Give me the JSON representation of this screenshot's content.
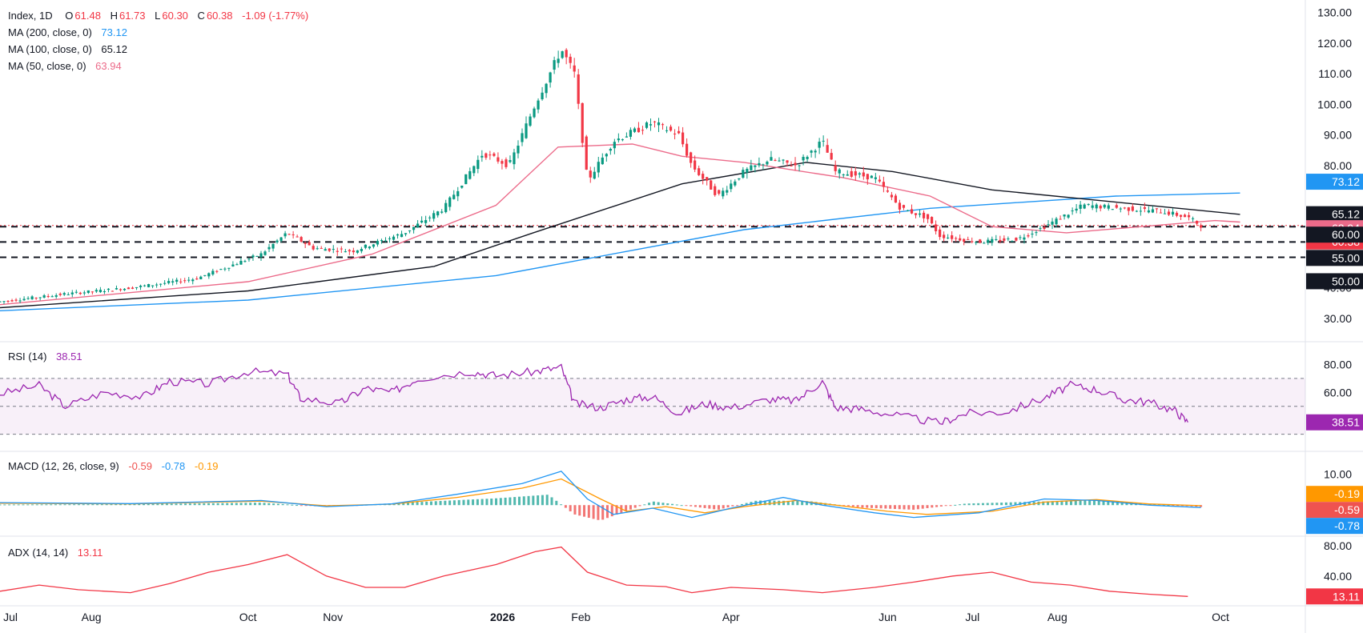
{
  "chart_data": {
    "type": "candlestick",
    "title": "Index, 1D",
    "ohlc": {
      "open_label": "O",
      "open": "61.48",
      "high_label": "H",
      "high": "61.73",
      "low_label": "L",
      "low": "60.30",
      "close_label": "C",
      "close": "60.38",
      "change": "-1.09 (-1.77%)"
    },
    "x_ticks": [
      "Jul",
      "Aug",
      "Oct",
      "Nov",
      "2026",
      "Feb",
      "Apr",
      "Jun",
      "Jul",
      "Aug",
      "Oct"
    ],
    "price_axis": {
      "ticks": [
        "130.00",
        "120.00",
        "110.00",
        "100.00",
        "90.00",
        "80.00",
        "40.00",
        "30.00"
      ],
      "ylim": [
        25,
        132
      ]
    },
    "levels": [
      60.38,
      60.0,
      55.0,
      50.0
    ],
    "level_labels": [
      "60.00",
      "55.00",
      "50.00"
    ],
    "last_price": "60.38",
    "ma": [
      {
        "name": "MA (200, close, 0)",
        "value": "73.12",
        "color": "#2196f3",
        "label": "73.12"
      },
      {
        "name": "MA (100, close, 0)",
        "value": "65.12",
        "color": "#131722",
        "label": "65.12"
      },
      {
        "name": "MA (50, close, 0)",
        "value": "63.94",
        "color": "#ec6b8a",
        "label": "63.94"
      }
    ],
    "ma_series": {
      "ma200": [
        [
          0,
          32.5
        ],
        [
          0.2,
          36
        ],
        [
          0.4,
          44
        ],
        [
          0.6,
          59
        ],
        [
          0.75,
          66
        ],
        [
          0.9,
          70
        ],
        [
          1,
          71
        ]
      ],
      "ma100": [
        [
          0,
          33.5
        ],
        [
          0.2,
          39
        ],
        [
          0.35,
          47
        ],
        [
          0.43,
          58
        ],
        [
          0.55,
          74
        ],
        [
          0.65,
          81
        ],
        [
          0.72,
          78
        ],
        [
          0.8,
          72
        ],
        [
          0.9,
          68
        ],
        [
          1,
          64
        ]
      ],
      "ma50": [
        [
          0,
          34.5
        ],
        [
          0.2,
          42
        ],
        [
          0.3,
          51
        ],
        [
          0.4,
          67
        ],
        [
          0.45,
          86
        ],
        [
          0.51,
          87
        ],
        [
          0.55,
          83
        ],
        [
          0.6,
          81
        ],
        [
          0.68,
          76
        ],
        [
          0.75,
          70
        ],
        [
          0.8,
          60
        ],
        [
          0.86,
          58
        ],
        [
          0.92,
          60
        ],
        [
          0.98,
          62
        ],
        [
          1,
          61.5
        ]
      ]
    },
    "price_path": [
      [
        0,
        35.5
      ],
      [
        0.05,
        38
      ],
      [
        0.1,
        40
      ],
      [
        0.15,
        43
      ],
      [
        0.2,
        51
      ],
      [
        0.22,
        58
      ],
      [
        0.24,
        53
      ],
      [
        0.27,
        52
      ],
      [
        0.31,
        58
      ],
      [
        0.34,
        66
      ],
      [
        0.37,
        84
      ],
      [
        0.39,
        80
      ],
      [
        0.41,
        100
      ],
      [
        0.43,
        118
      ],
      [
        0.44,
        110
      ],
      [
        0.45,
        75
      ],
      [
        0.47,
        88
      ],
      [
        0.5,
        94
      ],
      [
        0.52,
        90
      ],
      [
        0.53,
        80
      ],
      [
        0.55,
        70
      ],
      [
        0.57,
        78
      ],
      [
        0.59,
        82
      ],
      [
        0.61,
        80
      ],
      [
        0.63,
        88
      ],
      [
        0.64,
        78
      ],
      [
        0.67,
        76
      ],
      [
        0.69,
        66
      ],
      [
        0.71,
        63
      ],
      [
        0.72,
        57
      ],
      [
        0.75,
        55
      ],
      [
        0.78,
        56
      ],
      [
        0.8,
        60
      ],
      [
        0.83,
        67
      ],
      [
        0.86,
        66
      ],
      [
        0.89,
        65
      ],
      [
        0.91,
        63
      ],
      [
        0.92,
        60.38
      ]
    ],
    "rsi": {
      "name": "RSI (14)",
      "value": "38.51",
      "color": "#9c27b0",
      "label": "38.51",
      "ticks": [
        "80.00",
        "60.00"
      ],
      "band": [
        70,
        30
      ],
      "series": [
        [
          0,
          59
        ],
        [
          0.03,
          65
        ],
        [
          0.05,
          50
        ],
        [
          0.08,
          60
        ],
        [
          0.11,
          57
        ],
        [
          0.13,
          68
        ],
        [
          0.16,
          66
        ],
        [
          0.19,
          75
        ],
        [
          0.22,
          73
        ],
        [
          0.23,
          56
        ],
        [
          0.26,
          52
        ],
        [
          0.28,
          63
        ],
        [
          0.3,
          60
        ],
        [
          0.32,
          70
        ],
        [
          0.36,
          75
        ],
        [
          0.38,
          72
        ],
        [
          0.41,
          75
        ],
        [
          0.43,
          78
        ],
        [
          0.44,
          52
        ],
        [
          0.46,
          49
        ],
        [
          0.48,
          55
        ],
        [
          0.5,
          57
        ],
        [
          0.52,
          45
        ],
        [
          0.54,
          52
        ],
        [
          0.56,
          49
        ],
        [
          0.59,
          55
        ],
        [
          0.61,
          54
        ],
        [
          0.63,
          68
        ],
        [
          0.64,
          49
        ],
        [
          0.66,
          48
        ],
        [
          0.69,
          43
        ],
        [
          0.72,
          38
        ],
        [
          0.74,
          45
        ],
        [
          0.77,
          46
        ],
        [
          0.8,
          56
        ],
        [
          0.82,
          65
        ],
        [
          0.84,
          62
        ],
        [
          0.86,
          55
        ],
        [
          0.88,
          53
        ],
        [
          0.9,
          47
        ],
        [
          0.91,
          38.5
        ]
      ]
    },
    "macd": {
      "name": "MACD (12, 26, close, 9)",
      "values": [
        "-0.59",
        "-0.78",
        "-0.19"
      ],
      "colors": [
        "#ef5350",
        "#2196f3",
        "#ff9800"
      ],
      "ticks": [
        "10.00"
      ],
      "labels": [
        "-0.19",
        "-0.59",
        "-0.78"
      ],
      "hist": [
        [
          0,
          0.2
        ],
        [
          0.1,
          0.3
        ],
        [
          0.2,
          0.8
        ],
        [
          0.25,
          -0.6
        ],
        [
          0.3,
          0.6
        ],
        [
          0.38,
          2.2
        ],
        [
          0.42,
          3.4
        ],
        [
          0.44,
          -3
        ],
        [
          0.46,
          -5
        ],
        [
          0.5,
          1.2
        ],
        [
          0.55,
          -1.5
        ],
        [
          0.58,
          1.5
        ],
        [
          0.62,
          1.3
        ],
        [
          0.66,
          -0.8
        ],
        [
          0.7,
          -1.5
        ],
        [
          0.74,
          0.5
        ],
        [
          0.8,
          1.2
        ],
        [
          0.84,
          1.8
        ],
        [
          0.88,
          0.5
        ],
        [
          0.92,
          -0.59
        ]
      ],
      "line": [
        [
          0,
          0.8
        ],
        [
          0.1,
          0.5
        ],
        [
          0.2,
          1.5
        ],
        [
          0.25,
          -0.5
        ],
        [
          0.3,
          0.4
        ],
        [
          0.35,
          3.5
        ],
        [
          0.4,
          7
        ],
        [
          0.43,
          11
        ],
        [
          0.45,
          2
        ],
        [
          0.47,
          -3
        ],
        [
          0.5,
          -1
        ],
        [
          0.53,
          -4
        ],
        [
          0.56,
          -1
        ],
        [
          0.6,
          2.5
        ],
        [
          0.63,
          0
        ],
        [
          0.67,
          -2.5
        ],
        [
          0.7,
          -4
        ],
        [
          0.75,
          -2.5
        ],
        [
          0.8,
          2
        ],
        [
          0.84,
          1.5
        ],
        [
          0.88,
          0
        ],
        [
          0.92,
          -0.78
        ]
      ],
      "signal": [
        [
          0,
          0.6
        ],
        [
          0.1,
          0.4
        ],
        [
          0.2,
          1.3
        ],
        [
          0.25,
          -0.2
        ],
        [
          0.3,
          0.3
        ],
        [
          0.35,
          2.5
        ],
        [
          0.4,
          5.5
        ],
        [
          0.43,
          8.5
        ],
        [
          0.46,
          2
        ],
        [
          0.48,
          -2
        ],
        [
          0.51,
          -0.5
        ],
        [
          0.54,
          -2.5
        ],
        [
          0.57,
          -0.5
        ],
        [
          0.61,
          1.5
        ],
        [
          0.64,
          0
        ],
        [
          0.68,
          -2
        ],
        [
          0.71,
          -3
        ],
        [
          0.76,
          -2
        ],
        [
          0.8,
          1
        ],
        [
          0.84,
          1.8
        ],
        [
          0.88,
          0.4
        ],
        [
          0.92,
          -0.19
        ]
      ]
    },
    "adx": {
      "name": "ADX (14, 14)",
      "value": "13.11",
      "color": "#f23645",
      "label": "13.11",
      "ticks": [
        "80.00",
        "40.00"
      ],
      "series": [
        [
          0,
          20
        ],
        [
          0.03,
          28
        ],
        [
          0.06,
          22
        ],
        [
          0.1,
          18
        ],
        [
          0.13,
          30
        ],
        [
          0.16,
          45
        ],
        [
          0.19,
          55
        ],
        [
          0.22,
          68
        ],
        [
          0.25,
          40
        ],
        [
          0.28,
          25
        ],
        [
          0.31,
          25
        ],
        [
          0.34,
          40
        ],
        [
          0.38,
          55
        ],
        [
          0.41,
          72
        ],
        [
          0.43,
          78
        ],
        [
          0.45,
          45
        ],
        [
          0.48,
          28
        ],
        [
          0.51,
          26
        ],
        [
          0.53,
          18
        ],
        [
          0.56,
          25
        ],
        [
          0.6,
          22
        ],
        [
          0.63,
          18
        ],
        [
          0.67,
          25
        ],
        [
          0.7,
          32
        ],
        [
          0.73,
          40
        ],
        [
          0.76,
          45
        ],
        [
          0.79,
          32
        ],
        [
          0.82,
          28
        ],
        [
          0.85,
          20
        ],
        [
          0.88,
          16
        ],
        [
          0.91,
          13.11
        ]
      ]
    }
  }
}
